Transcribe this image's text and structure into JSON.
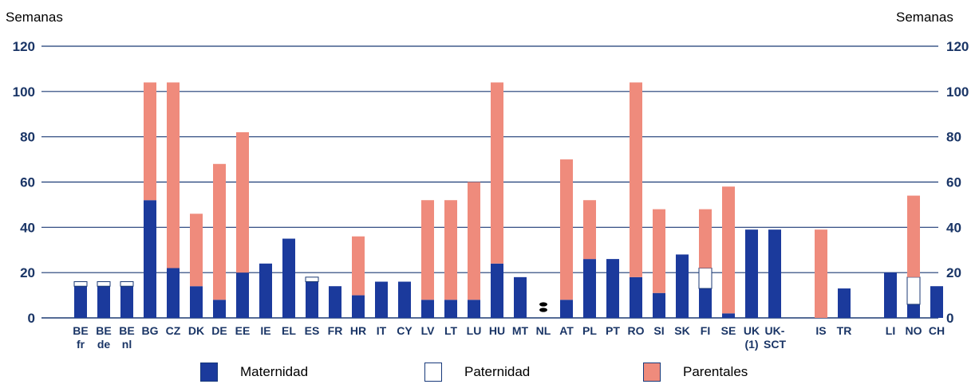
{
  "unit_left": "Semanas",
  "unit_right": "Semanas",
  "colors": {
    "maternidad": "#1b3a9c",
    "paternidad": "#ffffff",
    "parentales": "#ef8b7c",
    "gridline": "#1b3a74",
    "axis_text": "#1a3566"
  },
  "legend": [
    {
      "key": "maternidad",
      "label": "Maternidad"
    },
    {
      "key": "paternidad",
      "label": "Paternidad"
    },
    {
      "key": "parentales",
      "label": "Parentales"
    }
  ],
  "chart_data": {
    "type": "bar",
    "stacked": true,
    "ylim": [
      0,
      120
    ],
    "yticks": [
      0,
      20,
      40,
      60,
      80,
      100,
      120
    ],
    "right_axis_ticks": [
      "0",
      "20",
      "40",
      "60",
      "80",
      "100",
      "120"
    ],
    "grid": true,
    "legend_position": "bottom",
    "categories": [
      "BE fr",
      "BE de",
      "BE nl",
      "BG",
      "CZ",
      "DK",
      "DE",
      "EE",
      "IE",
      "EL",
      "ES",
      "FR",
      "HR",
      "IT",
      "CY",
      "LV",
      "LT",
      "LU",
      "HU",
      "MT",
      "NL",
      "AT",
      "PL",
      "PT",
      "RO",
      "SI",
      "SK",
      "FI",
      "SE",
      "UK (1)",
      "UK-SCT",
      "IS",
      "TR",
      "LI",
      "NO",
      "CH"
    ],
    "category_labels": [
      [
        "BE",
        "fr"
      ],
      [
        "BE",
        "de"
      ],
      [
        "BE",
        "nl"
      ],
      [
        "BG"
      ],
      [
        "CZ"
      ],
      [
        "DK"
      ],
      [
        "DE"
      ],
      [
        "EE"
      ],
      [
        "IE"
      ],
      [
        "EL"
      ],
      [
        "ES"
      ],
      [
        "FR"
      ],
      [
        "HR"
      ],
      [
        "IT"
      ],
      [
        "CY"
      ],
      [
        "LV"
      ],
      [
        "LT"
      ],
      [
        "LU"
      ],
      [
        "HU"
      ],
      [
        "MT"
      ],
      [
        "NL"
      ],
      [
        "AT"
      ],
      [
        "PL"
      ],
      [
        "PT"
      ],
      [
        "RO"
      ],
      [
        "SI"
      ],
      [
        "SK"
      ],
      [
        "FI"
      ],
      [
        "SE"
      ],
      [
        "UK",
        "(1)"
      ],
      [
        "UK-",
        "SCT"
      ],
      [
        "IS"
      ],
      [
        "TR"
      ],
      [
        "LI"
      ],
      [
        "NO"
      ],
      [
        "CH"
      ]
    ],
    "series": [
      {
        "name": "Maternidad",
        "values": [
          14,
          14,
          14,
          52,
          22,
          14,
          8,
          20,
          24,
          35,
          16,
          14,
          10,
          16,
          16,
          8,
          8,
          8,
          24,
          18,
          0,
          8,
          26,
          26,
          18,
          11,
          28,
          13,
          2,
          39,
          39,
          0,
          13,
          20,
          6,
          14
        ]
      },
      {
        "name": "Paternidad",
        "values": [
          2,
          2,
          2,
          0,
          0,
          0,
          0,
          0,
          0,
          0,
          2,
          0,
          0,
          0,
          0,
          0,
          0,
          0,
          0,
          0,
          0,
          0,
          0,
          0,
          0,
          0,
          0,
          9,
          0,
          0,
          0,
          0,
          0,
          0,
          12,
          0
        ]
      },
      {
        "name": "Parentales",
        "values": [
          0,
          0,
          0,
          52,
          82,
          32,
          60,
          62,
          0,
          0,
          0,
          0,
          26,
          0,
          0,
          44,
          44,
          52,
          80,
          0,
          0,
          62,
          26,
          0,
          86,
          37,
          0,
          26,
          56,
          0,
          0,
          39,
          0,
          0,
          36,
          0
        ]
      }
    ],
    "missing_marker_category": "NL"
  }
}
